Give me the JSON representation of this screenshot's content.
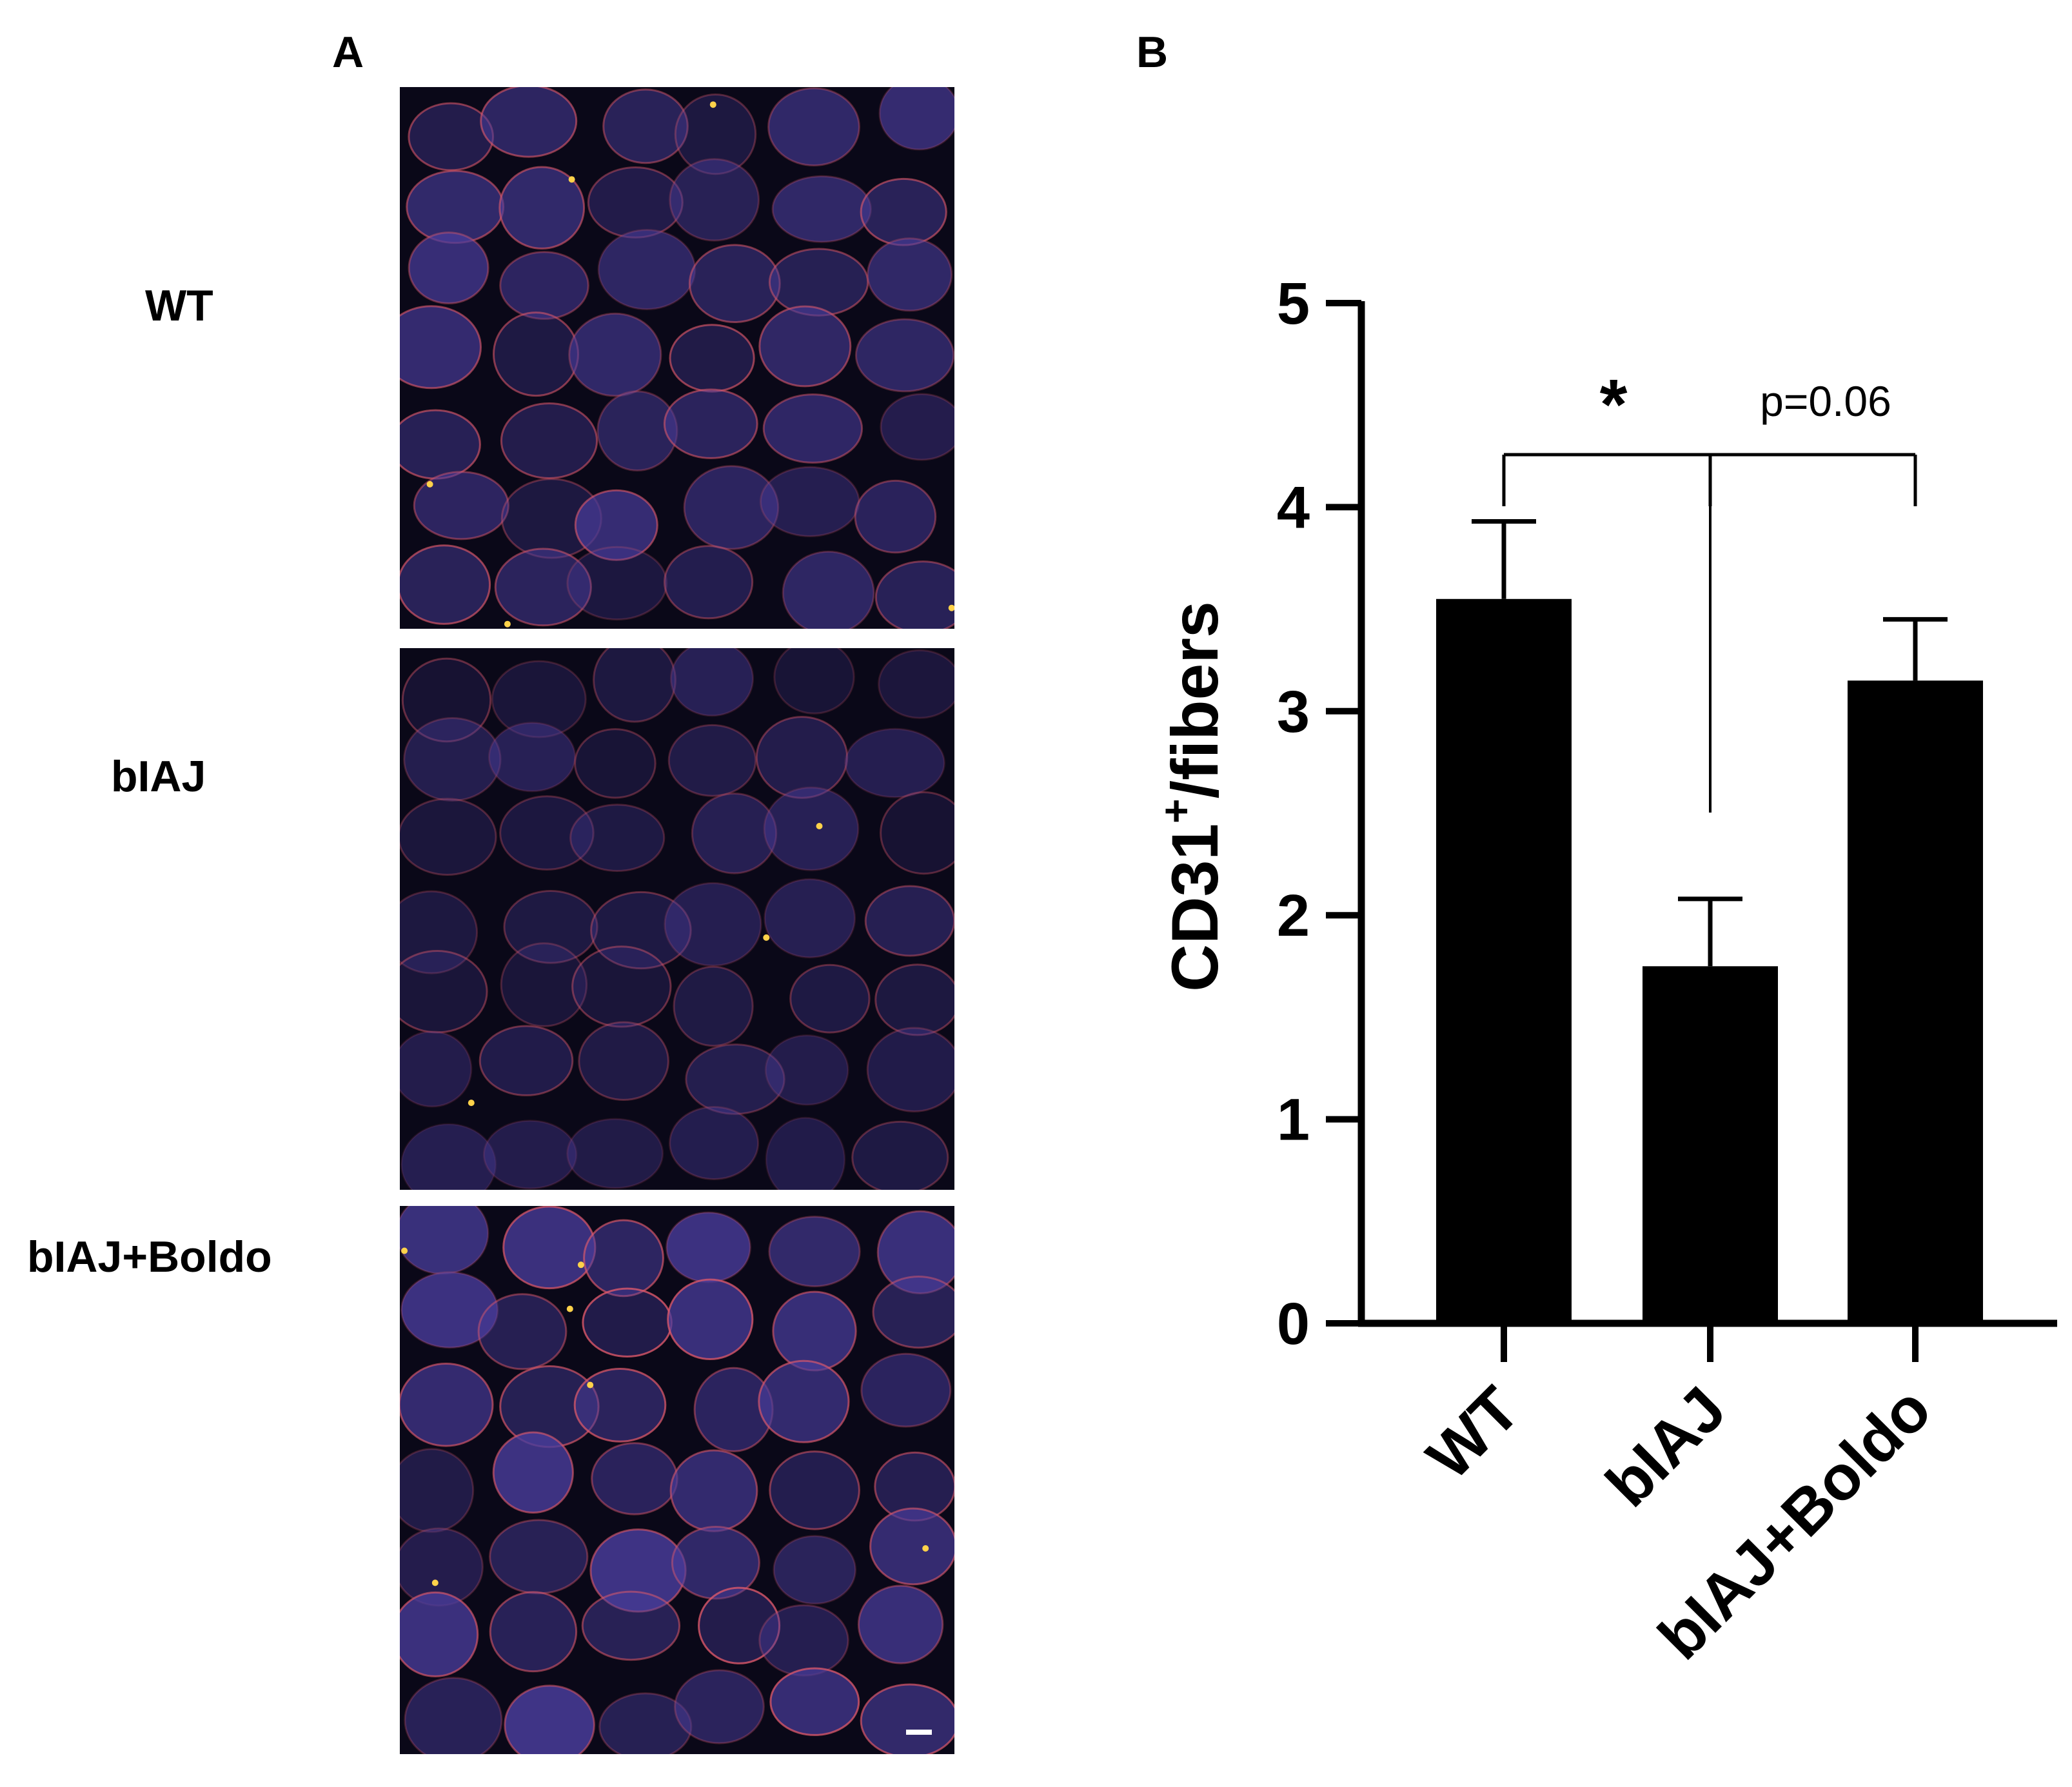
{
  "panel_a": {
    "letter": "A",
    "rows": [
      {
        "label": "WT",
        "intensity": 0.85
      },
      {
        "label": "bIAJ",
        "intensity": 0.55
      },
      {
        "label": "bIAJ+Boldo",
        "intensity": 1.0
      }
    ],
    "has_scale_bar": true
  },
  "panel_b": {
    "letter": "B"
  },
  "colors": {
    "bar": "#000000",
    "micro_background": "#0a0818",
    "fiber": "#4a3d9c",
    "membrane": "#e05a6a",
    "hotspot": "#ffd24a"
  },
  "chart_data": {
    "type": "bar",
    "categories": [
      "WT",
      "bIAJ",
      "bIAJ+Boldo"
    ],
    "values": [
      3.55,
      1.75,
      3.15
    ],
    "errors": [
      0.38,
      0.33,
      0.3
    ],
    "ylabel_main": "CD31",
    "ylabel_sup": "+",
    "ylabel_rest": "/fibers",
    "ylim": [
      0,
      5
    ],
    "yticks": [
      "0",
      "1",
      "2",
      "3",
      "4",
      "5"
    ],
    "significance": [
      {
        "from": 0,
        "to": 1,
        "label": "*"
      },
      {
        "from": 1,
        "to": 2,
        "label": "p=0.06"
      }
    ]
  }
}
